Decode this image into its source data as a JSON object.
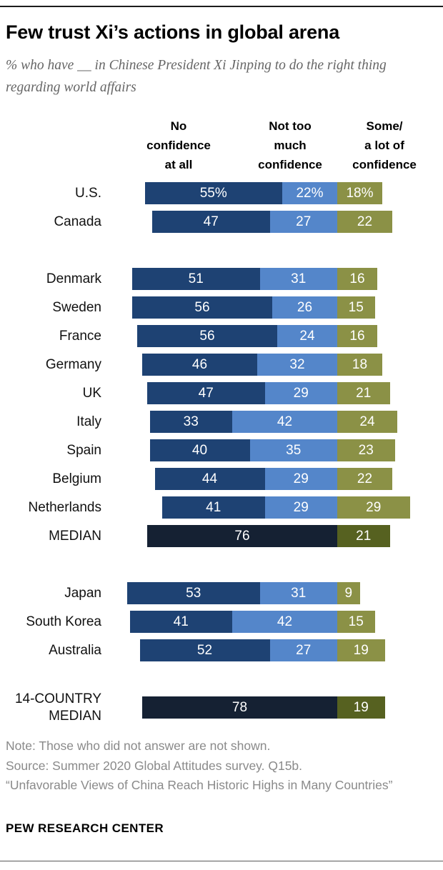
{
  "header": {
    "title": "Few trust Xi’s actions in global arena",
    "subtitle": "% who have __ in Chinese President Xi Jinping to do the right thing regarding world affairs"
  },
  "colors": {
    "no_confidence": "#1e4273",
    "not_too_much": "#5486ca",
    "some_confidence": "#8b9146",
    "median_no_confidence": "#152133",
    "median_some_confidence": "#566120"
  },
  "chart_data": {
    "type": "bar",
    "stacked": true,
    "orientation": "horizontal",
    "unit": "%",
    "value_range": [
      0,
      100
    ],
    "grid": false,
    "legend_position": "column-headers-top",
    "title": "Few trust Xi’s actions in global arena",
    "column_headers": [
      "No\nconfidence\nat all",
      "Not too\nmuch\nconfidence",
      "Some/\na lot of\nconfidence"
    ],
    "series_names": [
      "No confidence at all",
      "Not too much confidence",
      "Some/a lot of confidence"
    ],
    "groups": [
      {
        "rows": [
          {
            "label": "U.S.",
            "values": [
              55,
              22,
              18
            ],
            "value_suffix": "%",
            "median": false
          },
          {
            "label": "Canada",
            "values": [
              47,
              27,
              22
            ],
            "median": false
          }
        ]
      },
      {
        "rows": [
          {
            "label": "Denmark",
            "values": [
              51,
              31,
              16
            ],
            "median": false
          },
          {
            "label": "Sweden",
            "values": [
              56,
              26,
              15
            ],
            "median": false
          },
          {
            "label": "France",
            "values": [
              56,
              24,
              16
            ],
            "median": false
          },
          {
            "label": "Germany",
            "values": [
              46,
              32,
              18
            ],
            "median": false
          },
          {
            "label": "UK",
            "values": [
              47,
              29,
              21
            ],
            "median": false
          },
          {
            "label": "Italy",
            "values": [
              33,
              42,
              24
            ],
            "median": false
          },
          {
            "label": "Spain",
            "values": [
              40,
              35,
              23
            ],
            "median": false
          },
          {
            "label": "Belgium",
            "values": [
              44,
              29,
              22
            ],
            "median": false
          },
          {
            "label": "Netherlands",
            "values": [
              41,
              29,
              29
            ],
            "median": false
          },
          {
            "label": "MEDIAN",
            "values": [
              76,
              21
            ],
            "median": true
          }
        ]
      },
      {
        "rows": [
          {
            "label": "Japan",
            "values": [
              53,
              31,
              9
            ],
            "median": false
          },
          {
            "label": "South Korea",
            "values": [
              41,
              42,
              15
            ],
            "median": false
          },
          {
            "label": "Australia",
            "values": [
              52,
              27,
              19
            ],
            "median": false
          }
        ]
      },
      {
        "rows": [
          {
            "label": "14-COUNTRY\nMEDIAN",
            "values": [
              78,
              19
            ],
            "median": true
          }
        ]
      }
    ]
  },
  "footer": {
    "note": "Note: Those who did not answer are not shown.",
    "source": "Source: Summer 2020 Global Attitudes survey. Q15b.",
    "quote": "“Unfavorable Views of China Reach Historic Highs in Many Countries”",
    "brand": "PEW RESEARCH CENTER"
  }
}
